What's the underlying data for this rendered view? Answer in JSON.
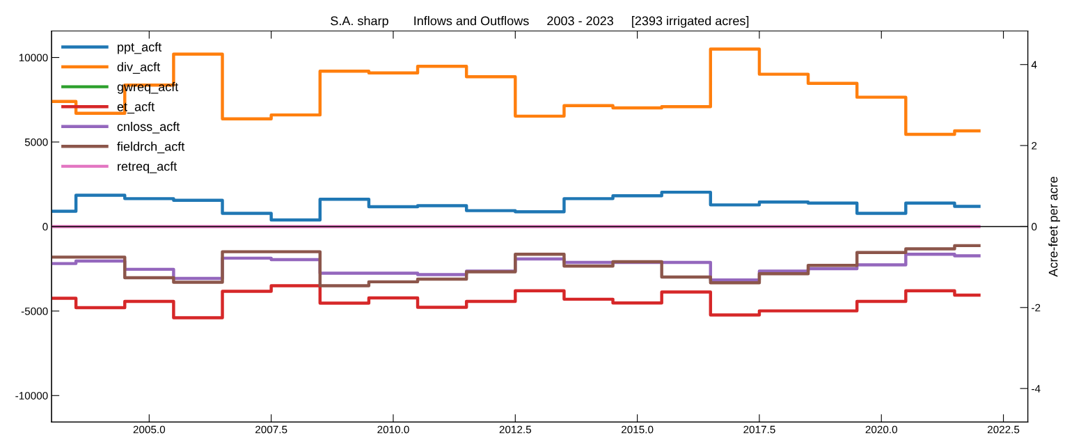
{
  "chart_data": {
    "type": "step",
    "title": "S.A. sharp       Inflows and Outflows     2003 - 2023     [2393 irrigated acres]",
    "y2label": "Acre-feet per acre",
    "x": [
      2003,
      2004,
      2005,
      2006,
      2007,
      2008,
      2009,
      2010,
      2011,
      2012,
      2013,
      2014,
      2015,
      2016,
      2017,
      2018,
      2019,
      2020,
      2021,
      2022
    ],
    "series": [
      {
        "name": "ppt_acft",
        "color": "#1f77b4",
        "values": [
          900,
          1850,
          1650,
          1550,
          780,
          390,
          1610,
          1170,
          1230,
          940,
          870,
          1650,
          1820,
          2030,
          1280,
          1450,
          1390,
          780,
          1390,
          1190
        ]
      },
      {
        "name": "div_acft",
        "color": "#ff7f0e",
        "values": [
          7400,
          6700,
          8370,
          10200,
          6370,
          6600,
          9190,
          9090,
          9480,
          8860,
          6530,
          7150,
          7020,
          7090,
          10500,
          9010,
          8470,
          7650,
          5450,
          5660
        ]
      },
      {
        "name": "gwreq_acft",
        "color": "#2ca02c",
        "values": [
          null,
          null,
          null,
          null,
          null,
          null,
          null,
          null,
          null,
          null,
          null,
          null,
          null,
          null,
          null,
          null,
          null,
          null,
          null,
          null
        ]
      },
      {
        "name": "et_acft",
        "color": "#d62728",
        "values": [
          -4240,
          -4800,
          -4430,
          -5400,
          -3830,
          -3500,
          -4530,
          -4220,
          -4780,
          -4430,
          -3800,
          -4300,
          -4520,
          -3870,
          -5230,
          -4990,
          -4990,
          -4430,
          -3800,
          -4060
        ]
      },
      {
        "name": "cnloss_acft",
        "color": "#9467bd",
        "values": [
          -2190,
          -2040,
          -2530,
          -3070,
          -1870,
          -1960,
          -2760,
          -2760,
          -2840,
          -2640,
          -1920,
          -2120,
          -2120,
          -2120,
          -3160,
          -2640,
          -2490,
          -2270,
          -1640,
          -1730
        ]
      },
      {
        "name": "fieldrch_acft",
        "color": "#8c564b",
        "values": [
          -1810,
          -1810,
          -3030,
          -3300,
          -1490,
          -1490,
          -3500,
          -3270,
          -3110,
          -2680,
          -1640,
          -2340,
          -2080,
          -2990,
          -3330,
          -2790,
          -2300,
          -1540,
          -1320,
          -1130
        ]
      },
      {
        "name": "retreq_acft",
        "color": "#e377c2",
        "values": [
          0,
          0,
          0,
          0,
          0,
          0,
          0,
          0,
          0,
          0,
          0,
          0,
          0,
          0,
          0,
          0,
          0,
          0,
          0,
          0
        ]
      }
    ],
    "xlim": [
      2003,
      2023
    ],
    "xticks": [
      {
        "value": 2005,
        "label": "2005.0"
      },
      {
        "value": 2007.5,
        "label": "2007.5"
      },
      {
        "value": 2010,
        "label": "2010.0"
      },
      {
        "value": 2012.5,
        "label": "2012.5"
      },
      {
        "value": 2015,
        "label": "2015.0"
      },
      {
        "value": 2017.5,
        "label": "2017.5"
      },
      {
        "value": 2020,
        "label": "2020.0"
      },
      {
        "value": 2022.5,
        "label": "2022.5"
      }
    ],
    "ylim": [
      -11570,
      11570
    ],
    "yticks": [
      -10000,
      -5000,
      0,
      5000,
      10000
    ],
    "y2lim": [
      -4.83,
      4.83
    ],
    "y2ticks": [
      -4,
      -2,
      0,
      2,
      4
    ],
    "ref_lines": [
      {
        "axis": "y",
        "value": 0,
        "color": "#000000"
      }
    ],
    "legend": "top left",
    "grid": false
  }
}
